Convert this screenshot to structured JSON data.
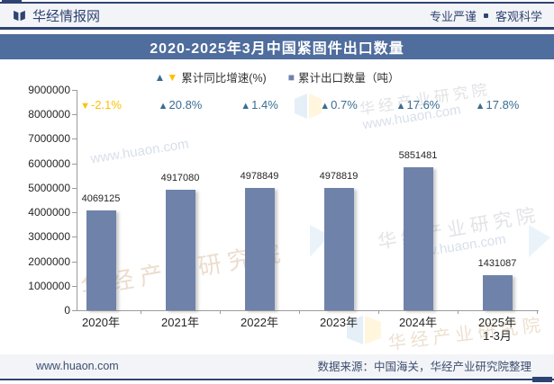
{
  "header": {
    "brand": "华经情报网",
    "slogan_left": "专业严谨",
    "slogan_right": "客观科学"
  },
  "title": "2020-2025年3月中国紧固件出口数量",
  "legend": {
    "growth_label": "累计同比增速(%)",
    "volume_label": "累计出口数量（吨）"
  },
  "chart_data": {
    "type": "bar",
    "categories": [
      "2020年",
      "2021年",
      "2022年",
      "2023年",
      "2024年",
      "2025年\n1-3月"
    ],
    "series": [
      {
        "name": "累计出口数量（吨）",
        "values": [
          4069125,
          4917080,
          4978849,
          4978819,
          5851481,
          1431087
        ]
      },
      {
        "name": "累计同比增速(%)",
        "values": [
          -2.1,
          20.8,
          1.4,
          0.7,
          17.6,
          17.8
        ]
      }
    ],
    "ylim": [
      0,
      9000000
    ],
    "ytick_step": 1000000,
    "grid": false,
    "legend_position": "top",
    "bar_color": "#6F82AA",
    "growth_up_color": "#3A6D92",
    "growth_down_color": "#FFC000"
  },
  "watermarks": {
    "institute": "华经产业研究院",
    "site": "www.huaon.com"
  },
  "footer": {
    "website": "www.huaon.com",
    "source": "数据来源：中国海关，华经产业研究院整理"
  },
  "colors": {
    "navy": "#2E4373",
    "title_band": "#4F6D9D",
    "bar": "#6F82AA",
    "growth_up": "#3A6D92",
    "growth_down": "#FFC000"
  }
}
